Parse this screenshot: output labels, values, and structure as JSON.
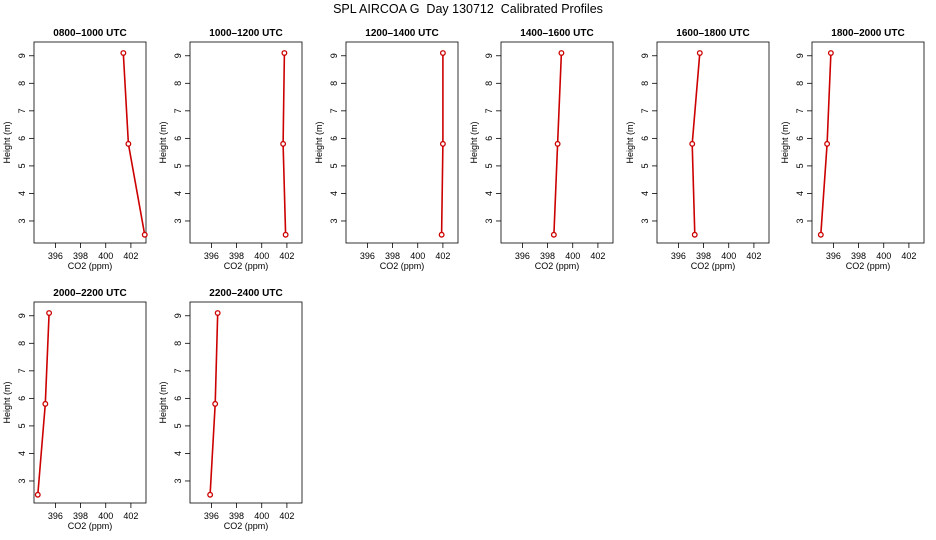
{
  "page": {
    "title": "SPL AIRCOA G  Day 130712  Calibrated Profiles"
  },
  "colors": {
    "series": "#cc0000",
    "axis": "#000000"
  },
  "chart_data": [
    {
      "type": "line",
      "title": "0800–1000 UTC",
      "xlabel": "CO2 (ppm)",
      "ylabel": "Height (m)",
      "xlim": [
        394.3,
        403.2
      ],
      "ylim": [
        2.2,
        9.5
      ],
      "xticks": [
        396,
        398,
        400,
        402
      ],
      "yticks": [
        3,
        4,
        5,
        6,
        7,
        8,
        9
      ],
      "points": [
        {
          "x": 401.4,
          "y": 9.1
        },
        {
          "x": 401.8,
          "y": 5.8
        },
        {
          "x": 403.1,
          "y": 2.5
        }
      ]
    },
    {
      "type": "line",
      "title": "1000–1200 UTC",
      "xlabel": "CO2 (ppm)",
      "ylabel": "Height (m)",
      "xlim": [
        394.3,
        403.2
      ],
      "ylim": [
        2.2,
        9.5
      ],
      "xticks": [
        396,
        398,
        400,
        402
      ],
      "yticks": [
        3,
        4,
        5,
        6,
        7,
        8,
        9
      ],
      "points": [
        {
          "x": 401.8,
          "y": 9.1
        },
        {
          "x": 401.7,
          "y": 5.8
        },
        {
          "x": 401.9,
          "y": 2.5
        }
      ]
    },
    {
      "type": "line",
      "title": "1200–1400 UTC",
      "xlabel": "CO2 (ppm)",
      "ylabel": "Height (m)",
      "xlim": [
        394.3,
        403.2
      ],
      "ylim": [
        2.2,
        9.5
      ],
      "xticks": [
        396,
        398,
        400,
        402
      ],
      "yticks": [
        3,
        4,
        5,
        6,
        7,
        8,
        9
      ],
      "points": [
        {
          "x": 402.0,
          "y": 9.1
        },
        {
          "x": 402.0,
          "y": 5.8
        },
        {
          "x": 401.9,
          "y": 2.5
        }
      ]
    },
    {
      "type": "line",
      "title": "1400–1600 UTC",
      "xlabel": "CO2 (ppm)",
      "ylabel": "Height (m)",
      "xlim": [
        394.3,
        403.2
      ],
      "ylim": [
        2.2,
        9.5
      ],
      "xticks": [
        396,
        398,
        400,
        402
      ],
      "yticks": [
        3,
        4,
        5,
        6,
        7,
        8,
        9
      ],
      "points": [
        {
          "x": 399.1,
          "y": 9.1
        },
        {
          "x": 398.8,
          "y": 5.8
        },
        {
          "x": 398.5,
          "y": 2.5
        }
      ]
    },
    {
      "type": "line",
      "title": "1600–1800 UTC",
      "xlabel": "CO2 (ppm)",
      "ylabel": "Height (m)",
      "xlim": [
        394.3,
        403.2
      ],
      "ylim": [
        2.2,
        9.5
      ],
      "xticks": [
        396,
        398,
        400,
        402
      ],
      "yticks": [
        3,
        4,
        5,
        6,
        7,
        8,
        9
      ],
      "points": [
        {
          "x": 397.7,
          "y": 9.1
        },
        {
          "x": 397.1,
          "y": 5.8
        },
        {
          "x": 397.3,
          "y": 2.5
        }
      ]
    },
    {
      "type": "line",
      "title": "1800–2000 UTC",
      "xlabel": "CO2 (ppm)",
      "ylabel": "Height (m)",
      "xlim": [
        394.3,
        403.2
      ],
      "ylim": [
        2.2,
        9.5
      ],
      "xticks": [
        396,
        398,
        400,
        402
      ],
      "yticks": [
        3,
        4,
        5,
        6,
        7,
        8,
        9
      ],
      "points": [
        {
          "x": 395.8,
          "y": 9.1
        },
        {
          "x": 395.5,
          "y": 5.8
        },
        {
          "x": 395.0,
          "y": 2.5
        }
      ]
    },
    {
      "type": "line",
      "title": "2000–2200 UTC",
      "xlabel": "CO2 (ppm)",
      "ylabel": "Height (m)",
      "xlim": [
        394.3,
        403.2
      ],
      "ylim": [
        2.2,
        9.5
      ],
      "xticks": [
        396,
        398,
        400,
        402
      ],
      "yticks": [
        3,
        4,
        5,
        6,
        7,
        8,
        9
      ],
      "points": [
        {
          "x": 395.5,
          "y": 9.1
        },
        {
          "x": 395.2,
          "y": 5.8
        },
        {
          "x": 394.6,
          "y": 2.5
        }
      ]
    },
    {
      "type": "line",
      "title": "2200–2400 UTC",
      "xlabel": "CO2 (ppm)",
      "ylabel": "Height (m)",
      "xlim": [
        394.3,
        403.2
      ],
      "ylim": [
        2.2,
        9.5
      ],
      "xticks": [
        396,
        398,
        400,
        402
      ],
      "yticks": [
        3,
        4,
        5,
        6,
        7,
        8,
        9
      ],
      "points": [
        {
          "x": 396.5,
          "y": 9.1
        },
        {
          "x": 396.3,
          "y": 5.8
        },
        {
          "x": 395.9,
          "y": 2.5
        }
      ]
    }
  ]
}
